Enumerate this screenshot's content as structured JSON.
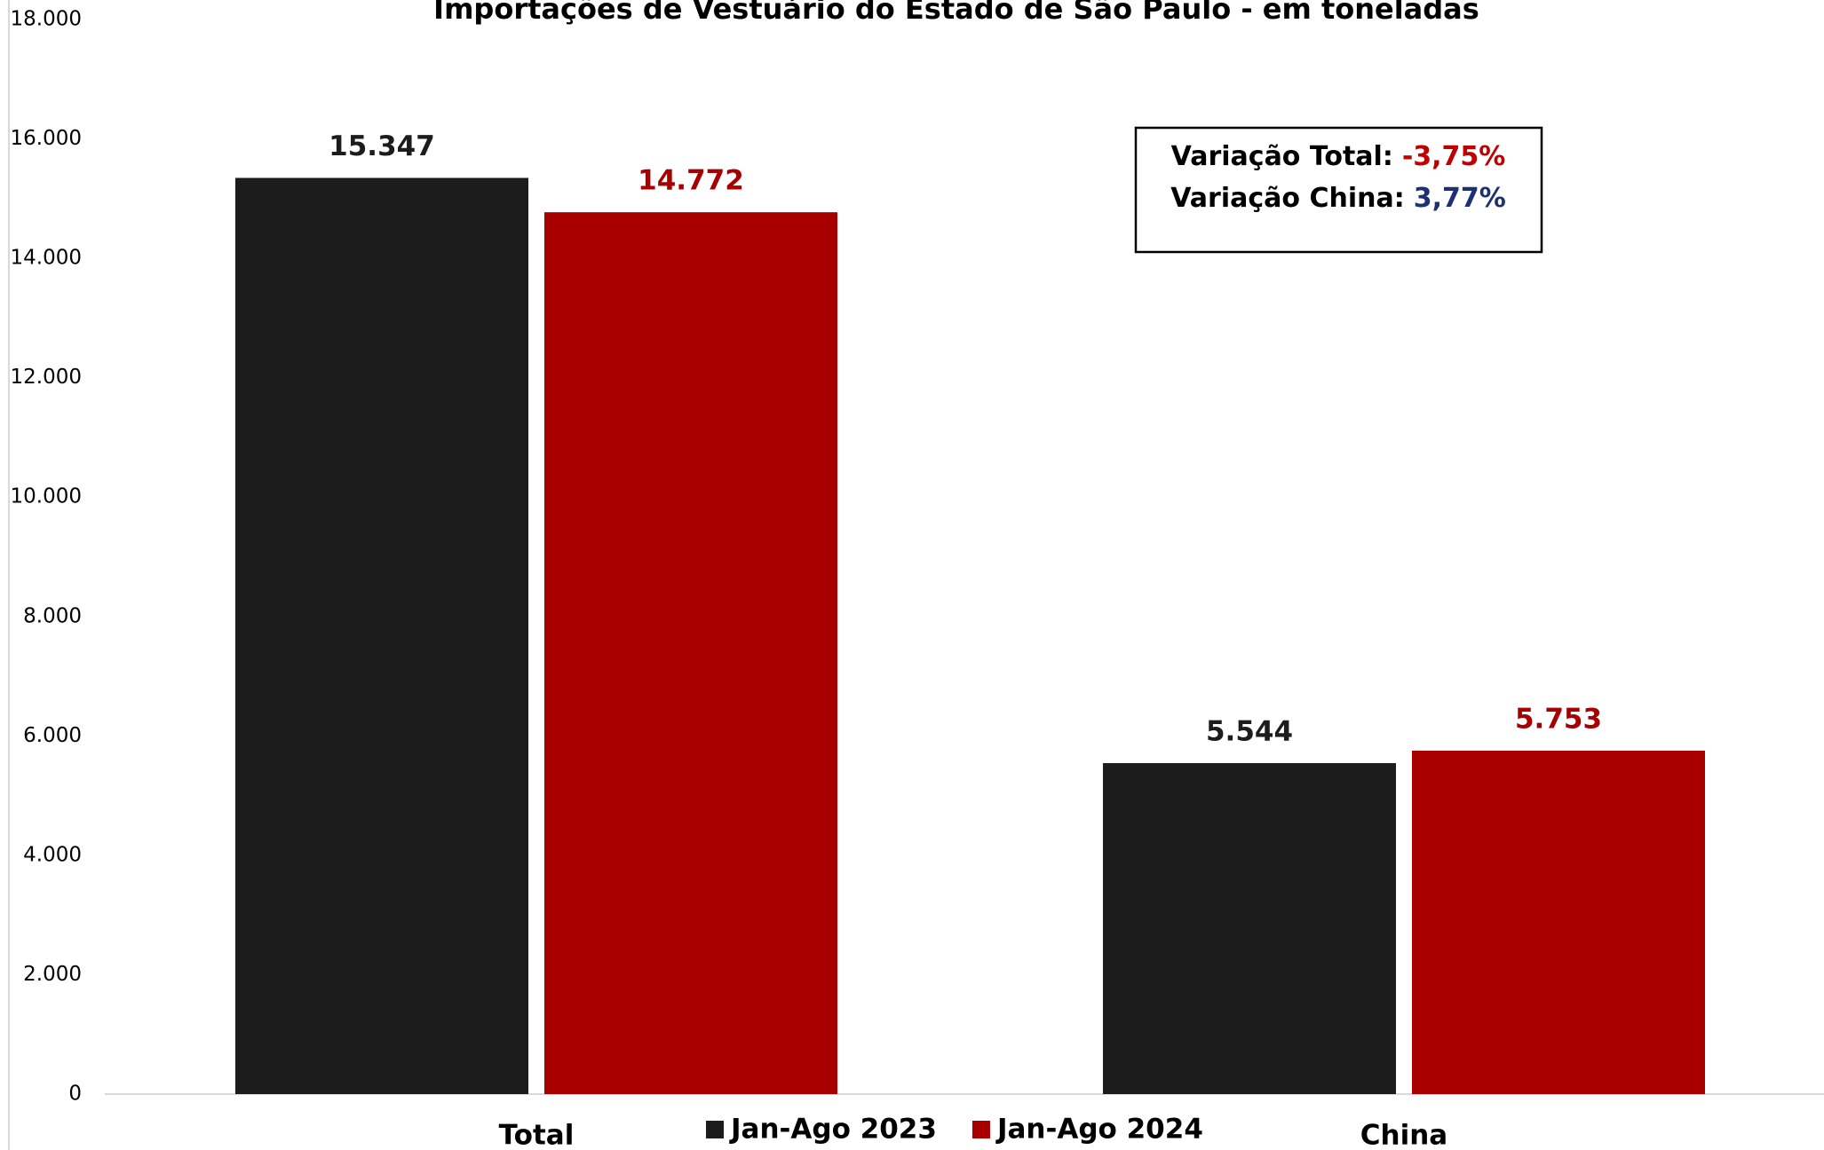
{
  "chart_data": {
    "type": "bar",
    "title": "Importações de Vestuário do Estado de São Paulo - em toneladas",
    "categories": [
      "Total",
      "China"
    ],
    "series": [
      {
        "name": "Jan-Ago 2023",
        "color": "#1c1c1c",
        "values": [
          15347,
          5544
        ],
        "value_labels": [
          "15.347",
          "5.544"
        ]
      },
      {
        "name": "Jan-Ago 2024",
        "color": "#a80000",
        "values": [
          14772,
          5753
        ],
        "value_labels": [
          "14.772",
          "5.753"
        ]
      }
    ],
    "ylim": [
      0,
      18000
    ],
    "yticks": [
      0,
      {
        "value": 2000,
        "label": "2.000"
      },
      {
        "value": 4000,
        "label": "4.000"
      },
      {
        "value": 6000,
        "label": "6.000"
      },
      {
        "value": 8000,
        "label": "8.000"
      },
      {
        "value": 10000,
        "label": "10.000"
      },
      {
        "value": 12000,
        "label": "12.000"
      },
      {
        "value": 14000,
        "label": "14.000"
      },
      {
        "value": 16000,
        "label": "16.000"
      },
      {
        "value": 18000,
        "label": "18.000"
      }
    ],
    "grid": false,
    "legend": "bottom",
    "annotations": [
      {
        "label": "Variação Total:",
        "value": "-3,75%",
        "color": "#c00000"
      },
      {
        "label": "Variação China:",
        "value": "3,77%",
        "color": "#1f3070"
      }
    ]
  }
}
